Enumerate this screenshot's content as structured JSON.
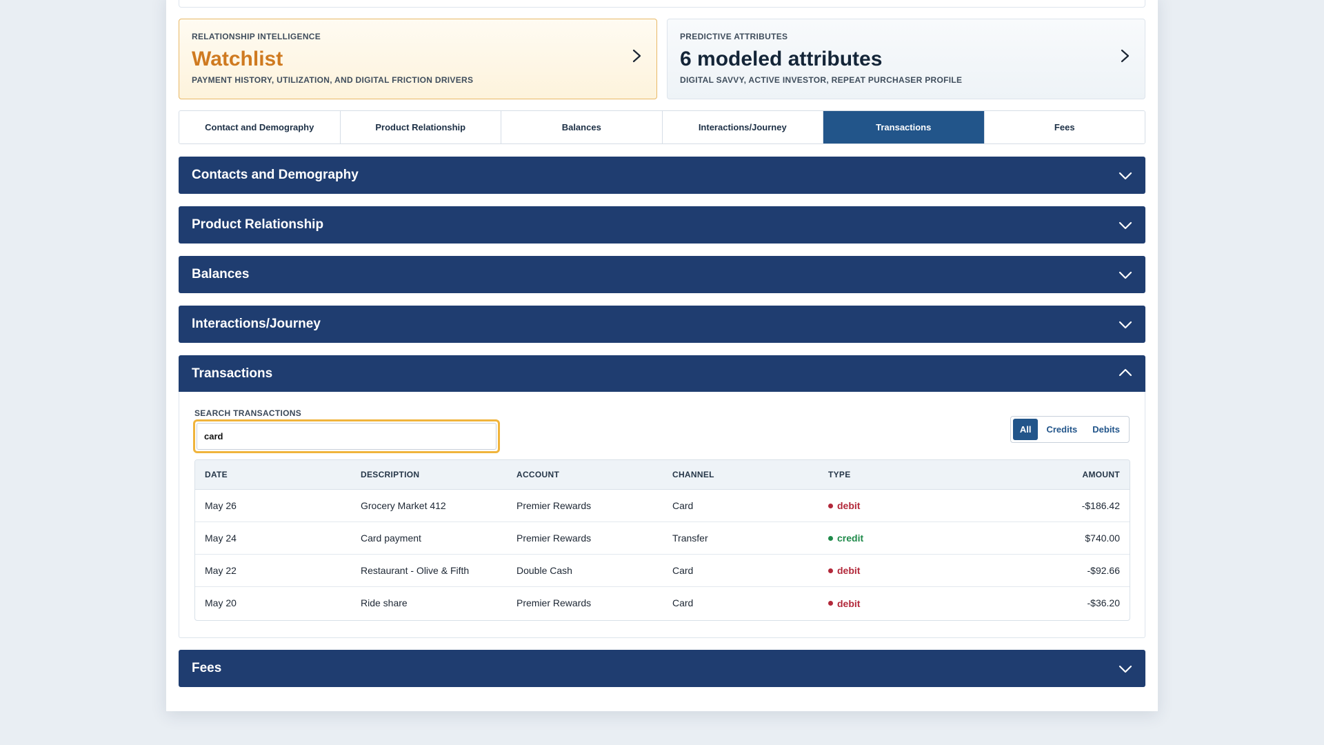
{
  "summary": {
    "relationship": {
      "kicker": "RELATIONSHIP INTELLIGENCE",
      "title": "Watchlist",
      "subtitle": "PAYMENT HISTORY, UTILIZATION, AND DIGITAL FRICTION DRIVERS",
      "accent": "#cf7a20"
    },
    "predictive": {
      "kicker": "PREDICTIVE ATTRIBUTES",
      "title": "6 modeled attributes",
      "subtitle": "DIGITAL SAVVY, ACTIVE INVESTOR, REPEAT PURCHASER PROFILE"
    }
  },
  "tabs": [
    {
      "label": "Contact and Demography",
      "active": false
    },
    {
      "label": "Product Relationship",
      "active": false
    },
    {
      "label": "Balances",
      "active": false
    },
    {
      "label": "Interactions/Journey",
      "active": false
    },
    {
      "label": "Transactions",
      "active": true
    },
    {
      "label": "Fees",
      "active": false
    }
  ],
  "sections": [
    {
      "title": "Contacts and Demography",
      "expanded": false
    },
    {
      "title": "Product Relationship",
      "expanded": false
    },
    {
      "title": "Balances",
      "expanded": false
    },
    {
      "title": "Interactions/Journey",
      "expanded": false
    },
    {
      "title": "Transactions",
      "expanded": true
    },
    {
      "title": "Fees",
      "expanded": false
    }
  ],
  "transactions": {
    "search_label": "SEARCH TRANSACTIONS",
    "search_value": "card",
    "filters": [
      {
        "label": "All",
        "active": true
      },
      {
        "label": "Credits",
        "active": false
      },
      {
        "label": "Debits",
        "active": false
      }
    ],
    "columns": {
      "date": "DATE",
      "description": "DESCRIPTION",
      "account": "ACCOUNT",
      "channel": "CHANNEL",
      "type": "TYPE",
      "amount": "AMOUNT"
    },
    "rows": [
      {
        "date": "May 26",
        "description": "Grocery Market 412",
        "account": "Premier Rewards",
        "channel": "Card",
        "type": "debit",
        "amount": "-$186.42"
      },
      {
        "date": "May 24",
        "description": "Card payment",
        "account": "Premier Rewards",
        "channel": "Transfer",
        "type": "credit",
        "amount": "$740.00"
      },
      {
        "date": "May 22",
        "description": "Restaurant - Olive & Fifth",
        "account": "Double Cash",
        "channel": "Card",
        "type": "debit",
        "amount": "-$92.66"
      },
      {
        "date": "May 20",
        "description": "Ride share",
        "account": "Premier Rewards",
        "channel": "Card",
        "type": "debit",
        "amount": "-$36.20"
      }
    ]
  },
  "colors": {
    "primary": "#22558a",
    "header": "#1f3d70",
    "debit": "#b2283a",
    "credit": "#1f8a4a",
    "focus": "#f0b43c"
  }
}
